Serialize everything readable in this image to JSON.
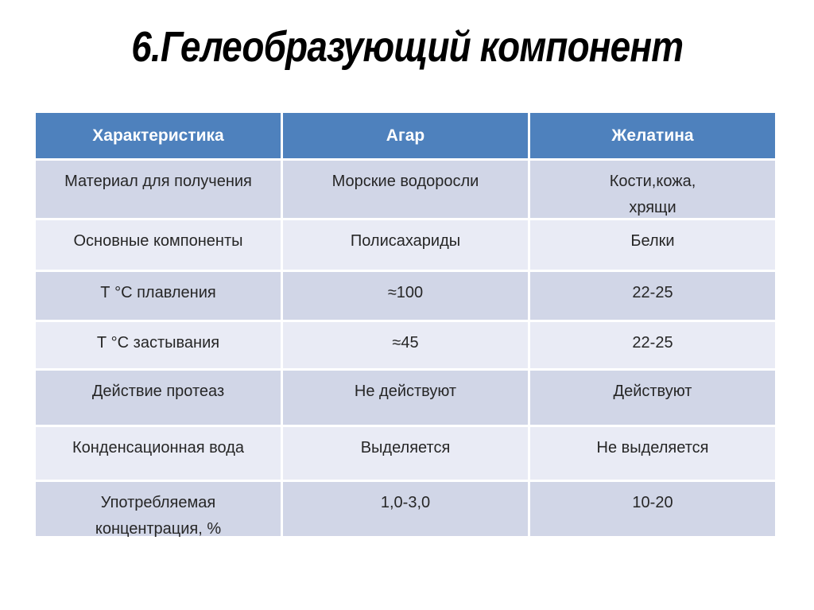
{
  "slide_title": "6.Гелеобразующий компонент",
  "table": {
    "columns": [
      "Характеристика",
      "Агар",
      "Желатина"
    ],
    "rows": [
      {
        "cells": [
          "Материал для получения",
          "Морские водоросли",
          "Кости,кожа,\nхрящи"
        ]
      },
      {
        "cells": [
          "Основные компоненты",
          "Полисахариды",
          "Белки"
        ]
      },
      {
        "cells": [
          "Т °С плавления",
          "≈100",
          "22-25"
        ]
      },
      {
        "cells": [
          "Т °С  застывания",
          "≈45",
          "22-25"
        ]
      },
      {
        "cells": [
          "Действие протеаз",
          "Не действуют",
          "Действуют"
        ]
      },
      {
        "cells": [
          "Конденсационная вода",
          "Выделяется",
          "Не выделяется"
        ]
      },
      {
        "cells": [
          "Употребляемая\nконцентрация, %",
          "1,0-3,0",
          "10-20"
        ]
      }
    ]
  },
  "colors": {
    "header_bg": "#4E81BD",
    "header_text": "#FFFFFF",
    "row_dark": "#D1D6E7",
    "row_light": "#E9EBF5",
    "cell_text": "#262626",
    "title_text": "#000000",
    "gap": "#FFFFFF"
  }
}
